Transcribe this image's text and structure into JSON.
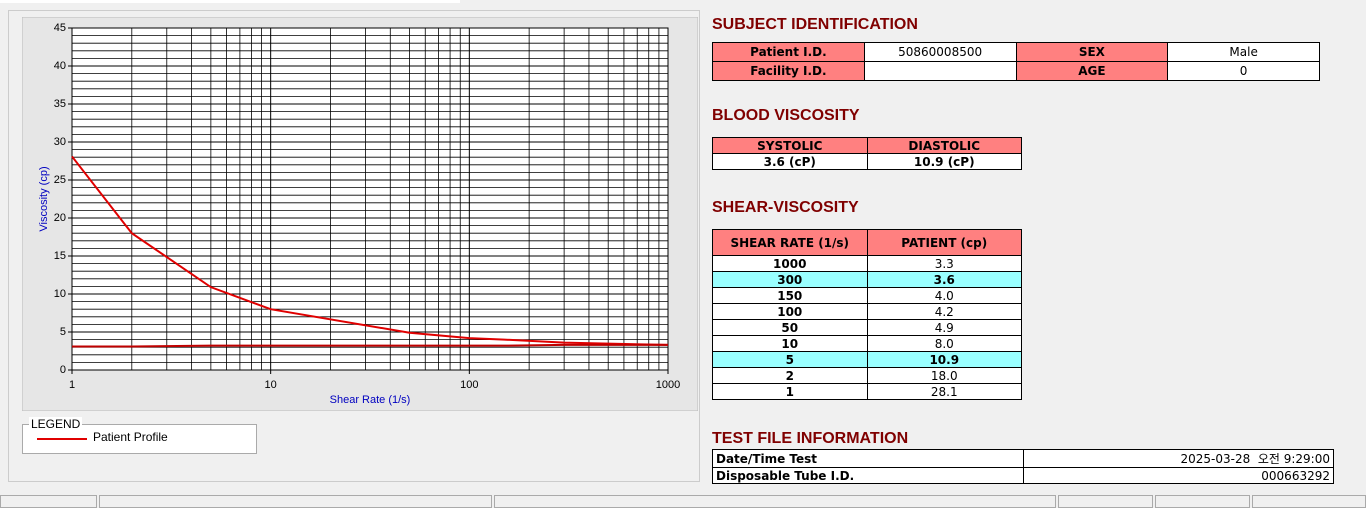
{
  "chart_data": {
    "type": "line",
    "xlabel": "Shear Rate (1/s)",
    "ylabel": "Viscosity (cp)",
    "log_x": true,
    "x": [
      1,
      2,
      5,
      10,
      50,
      100,
      150,
      300,
      1000
    ],
    "series": [
      {
        "name": "Patient Profile",
        "color": "#e00000",
        "values": [
          28.1,
          18.0,
          10.9,
          8.0,
          4.9,
          4.2,
          4.0,
          3.6,
          3.3
        ]
      },
      {
        "color": "#c00000",
        "values": [
          3.1,
          3.1,
          3.2,
          3.2,
          3.2,
          3.2,
          3.2,
          3.3,
          3.3
        ]
      }
    ],
    "xlim": [
      1,
      1000
    ],
    "xticks": [
      1,
      10,
      100,
      1000
    ],
    "ylim": [
      0,
      45
    ],
    "yticks": [
      0,
      5,
      10,
      15,
      20,
      25,
      30,
      35,
      40,
      45
    ],
    "grid": true,
    "minor_grid": true,
    "legend_title": "LEGEND"
  },
  "subject": {
    "title": "SUBJECT IDENTIFICATION",
    "rows": [
      {
        "label": "Patient I.D.",
        "value": "50860008500",
        "label2": "SEX",
        "value2": "Male"
      },
      {
        "label": "Facility I.D.",
        "label2": "AGE",
        "value2": "0"
      }
    ]
  },
  "blood": {
    "title": "BLOOD VISCOSITY",
    "headers": [
      "SYSTOLIC",
      "DIASTOLIC"
    ],
    "values": [
      "3.6 (cP)",
      "10.9 (cP)"
    ]
  },
  "shear": {
    "title": "SHEAR-VISCOSITY",
    "headers": [
      "SHEAR RATE (1/s)",
      "PATIENT (cp)"
    ],
    "rows": [
      [
        "1000",
        "3.3"
      ],
      [
        "300",
        "3.6"
      ],
      [
        "150",
        "4.0"
      ],
      [
        "100",
        "4.2"
      ],
      [
        "50",
        "4.9"
      ],
      [
        "10",
        "8.0"
      ],
      [
        "5",
        "10.9"
      ],
      [
        "2",
        "18.0"
      ],
      [
        "1",
        "28.1"
      ]
    ],
    "highlighted_rows": [
      1,
      6
    ]
  },
  "test_file": {
    "title": "TEST FILE INFORMATION",
    "rows": [
      [
        "Date/Time Test",
        "2025-03-28  오전 9:29:00"
      ],
      [
        "Disposable Tube I.D.",
        "000663292"
      ]
    ]
  }
}
